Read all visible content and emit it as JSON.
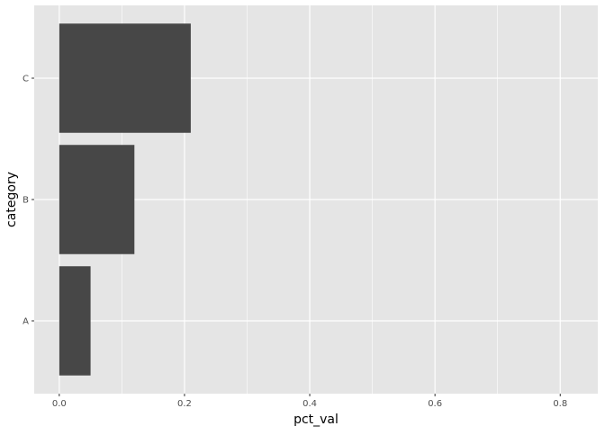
{
  "chart_data": {
    "type": "bar",
    "orientation": "horizontal",
    "categories": [
      "A",
      "B",
      "C"
    ],
    "values": [
      0.05,
      0.12,
      0.21
    ],
    "xlabel": "pct_val",
    "ylabel": "category",
    "xlim": [
      -0.04,
      0.86
    ],
    "xticks": [
      0.0,
      0.2,
      0.4,
      0.6,
      0.8
    ],
    "xtick_labels": [
      "0.0",
      "0.2",
      "0.4",
      "0.6",
      "0.8"
    ],
    "grid": true,
    "colors": {
      "bar": "#474747",
      "panel": "#e5e5e5",
      "grid": "#ffffff",
      "text": "#4d4d4d"
    }
  }
}
